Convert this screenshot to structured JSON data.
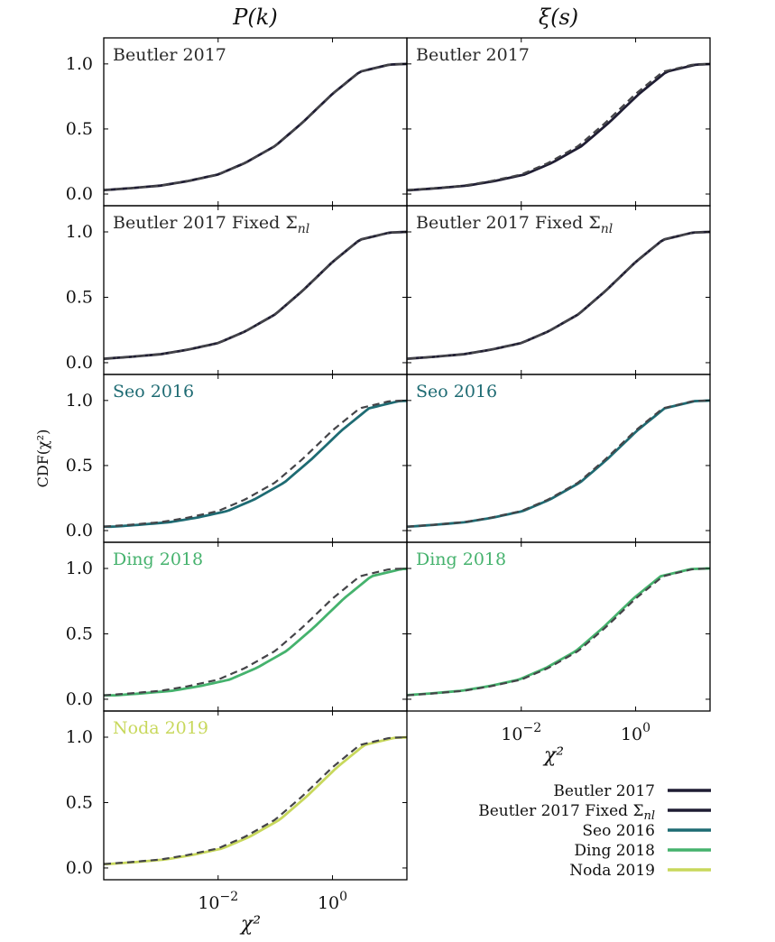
{
  "chart_data": {
    "type": "line",
    "column_titles": [
      "P(k)",
      "ξ(s)"
    ],
    "ylabel": "CDF(χ²)",
    "xlabel": "χ²",
    "x_scale": "log",
    "xlim": [
      0.0001,
      20
    ],
    "ylim": [
      -0.09,
      1.2
    ],
    "xticks": [
      {
        "value": 0.01,
        "label": "10⁻²"
      },
      {
        "value": 1,
        "label": "10⁰"
      }
    ],
    "yticks": [
      {
        "value": 0.0,
        "label": "0.0"
      },
      {
        "value": 0.5,
        "label": "0.5"
      },
      {
        "value": 1.0,
        "label": "1.0"
      }
    ],
    "reference_line_style": "dashed",
    "colors": {
      "Beutler 2017": "#1f1d33",
      "Beutler 2017 Fixed Σnl": "#1f1d33",
      "Seo 2016": "#1e6b73",
      "Ding 2018": "#45b26d",
      "Noda 2019": "#c8d85c"
    },
    "panels": [
      {
        "row": 0,
        "col": 0,
        "label": "Beutler 2017",
        "series": "Beutler 2017",
        "shift": 0.0,
        "label_color": "#2a2a2a"
      },
      {
        "row": 0,
        "col": 1,
        "label": "Beutler 2017",
        "series": "Beutler 2017",
        "shift": 0.06,
        "label_color": "#2a2a2a"
      },
      {
        "row": 1,
        "col": 0,
        "label": "Beutler 2017 Fixed Σnl",
        "series": "Beutler 2017 Fixed Σnl",
        "shift": 0.0,
        "label_color": "#2a2a2a"
      },
      {
        "row": 1,
        "col": 1,
        "label": "Beutler 2017 Fixed Σnl",
        "series": "Beutler 2017 Fixed Σnl",
        "shift": 0.0,
        "label_color": "#2a2a2a"
      },
      {
        "row": 2,
        "col": 0,
        "label": "Seo 2016",
        "series": "Seo 2016",
        "shift": 0.16,
        "label_color": "#1e6b73"
      },
      {
        "row": 2,
        "col": 1,
        "label": "Seo 2016",
        "series": "Seo 2016",
        "shift": 0.03,
        "label_color": "#1e6b73"
      },
      {
        "row": 3,
        "col": 0,
        "label": "Ding 2018",
        "series": "Ding 2018",
        "shift": 0.2,
        "label_color": "#45b26d"
      },
      {
        "row": 3,
        "col": 1,
        "label": "Ding 2018",
        "series": "Ding 2018",
        "shift": -0.04,
        "label_color": "#45b26d"
      },
      {
        "row": 4,
        "col": 0,
        "label": "Noda 2019",
        "series": "Noda 2019",
        "shift": 0.08,
        "label_color": "#c8d85c"
      }
    ],
    "legend": {
      "placement": "lower-right",
      "entries": [
        {
          "label": "Beutler 2017",
          "color": "#1f1d33"
        },
        {
          "label": "Beutler 2017 Fixed Σnl",
          "color": "#1f1d33"
        },
        {
          "label": "Seo 2016",
          "color": "#1e6b73"
        },
        {
          "label": "Ding 2018",
          "color": "#45b26d"
        },
        {
          "label": "Noda 2019",
          "color": "#c8d85c"
        }
      ]
    },
    "reference_cdf": {
      "x": [
        0.0001,
        0.0003,
        0.001,
        0.003,
        0.01,
        0.03,
        0.1,
        0.3,
        1,
        3,
        10,
        20
      ],
      "y": [
        0.03,
        0.045,
        0.065,
        0.1,
        0.15,
        0.24,
        0.37,
        0.55,
        0.77,
        0.94,
        0.995,
        1.0
      ]
    }
  }
}
